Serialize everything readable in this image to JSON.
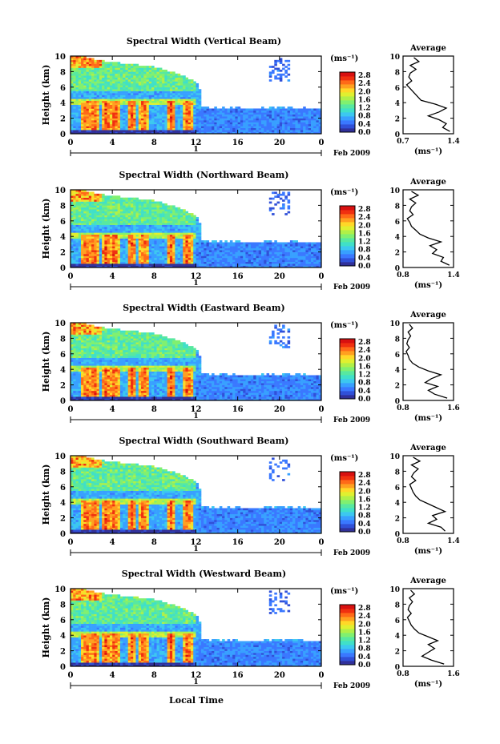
{
  "figure": {
    "xlabel": "Local Time",
    "date_label": "Feb 2009",
    "day_label": "1"
  },
  "colorbar": {
    "unit": "(ms⁻¹)",
    "ticks": [
      "2.8",
      "2.4",
      "2.0",
      "1.6",
      "1.2",
      "0.8",
      "0.4",
      "0.0"
    ],
    "colors": [
      "#30309a",
      "#3050d8",
      "#3a78ff",
      "#38a0ff",
      "#3cc8f0",
      "#40e0c8",
      "#58e8a0",
      "#80f070",
      "#b0f048",
      "#e0f030",
      "#ffd828",
      "#ffa020",
      "#ff6a18",
      "#f03010",
      "#d81010"
    ]
  },
  "chart_data": [
    {
      "type": "heatmap",
      "title": "Spectral Width (Vertical Beam)",
      "ylabel": "Height (km)",
      "xlim": [
        0,
        24
      ],
      "ylim": [
        0,
        10
      ],
      "x_ticks": [
        "0",
        "4",
        "8",
        "12",
        "16",
        "20",
        "0"
      ],
      "y_ticks": [
        "0",
        "2",
        "4",
        "6",
        "8",
        "10"
      ],
      "profile": {
        "title": "Average",
        "xlabel": "(ms⁻¹)",
        "xlim": [
          0.7,
          1.4
        ],
        "x_ticks": [
          "0.7",
          "1.4"
        ],
        "heights": [
          0.3,
          0.8,
          1.3,
          1.8,
          2.3,
          2.8,
          3.3,
          3.8,
          4.3,
          4.8,
          5.3,
          5.8,
          6.3,
          6.8,
          7.3,
          7.8,
          8.3,
          8.8,
          9.3,
          9.8
        ],
        "values": [
          1.35,
          1.25,
          1.3,
          1.2,
          1.05,
          1.2,
          1.3,
          1.15,
          0.95,
          0.9,
          0.85,
          0.8,
          0.75,
          0.82,
          0.78,
          0.8,
          0.88,
          0.8,
          0.92,
          0.85
        ]
      }
    },
    {
      "type": "heatmap",
      "title": "Spectral Width (Northward Beam)",
      "ylabel": "Height (km)",
      "xlim": [
        0,
        24
      ],
      "ylim": [
        0,
        10
      ],
      "x_ticks": [
        "0",
        "4",
        "8",
        "12",
        "16",
        "20",
        "0"
      ],
      "y_ticks": [
        "0",
        "2",
        "4",
        "6",
        "8",
        "10"
      ],
      "profile": {
        "title": "Average",
        "xlabel": "(ms⁻¹)",
        "xlim": [
          0.8,
          1.4
        ],
        "x_ticks": [
          "0.8",
          "1.4"
        ],
        "heights": [
          0.3,
          0.8,
          1.3,
          1.8,
          2.3,
          2.8,
          3.3,
          3.8,
          4.3,
          4.8,
          5.3,
          5.8,
          6.3,
          6.8,
          7.3,
          7.8,
          8.3,
          8.8,
          9.3,
          9.8
        ],
        "values": [
          1.35,
          1.25,
          1.28,
          1.15,
          1.2,
          1.12,
          1.25,
          1.1,
          1.0,
          0.95,
          0.9,
          0.88,
          0.85,
          0.92,
          0.88,
          0.9,
          0.95,
          0.88,
          0.98,
          0.9
        ]
      }
    },
    {
      "type": "heatmap",
      "title": "Spectral Width (Eastward Beam)",
      "ylabel": "Height (km)",
      "xlim": [
        0,
        24
      ],
      "ylim": [
        0,
        10
      ],
      "x_ticks": [
        "0",
        "4",
        "8",
        "12",
        "16",
        "20",
        "0"
      ],
      "y_ticks": [
        "0",
        "2",
        "4",
        "6",
        "8",
        "10"
      ],
      "profile": {
        "title": "Average",
        "xlabel": "(ms⁻¹)",
        "xlim": [
          0.8,
          1.6
        ],
        "x_ticks": [
          "0.8",
          "1.6"
        ],
        "heights": [
          0.3,
          0.8,
          1.3,
          1.8,
          2.3,
          2.8,
          3.3,
          3.8,
          4.3,
          4.8,
          5.3,
          5.8,
          6.3,
          6.8,
          7.3,
          7.8,
          8.3,
          8.8,
          9.3,
          9.8
        ],
        "values": [
          1.5,
          1.3,
          1.2,
          1.35,
          1.15,
          1.25,
          1.4,
          1.2,
          1.05,
          0.95,
          0.9,
          0.88,
          0.85,
          0.9,
          0.86,
          0.88,
          0.92,
          0.88,
          0.95,
          0.9
        ]
      }
    },
    {
      "type": "heatmap",
      "title": "Spectral Width (Southward Beam)",
      "ylabel": "Height (km)",
      "xlim": [
        0,
        24
      ],
      "ylim": [
        0,
        10
      ],
      "x_ticks": [
        "0",
        "4",
        "8",
        "12",
        "16",
        "20",
        "0"
      ],
      "y_ticks": [
        "0",
        "2",
        "4",
        "6",
        "8",
        "10"
      ],
      "profile": {
        "title": "Average",
        "xlabel": "(ms⁻¹)",
        "xlim": [
          0.8,
          1.4
        ],
        "x_ticks": [
          "0.8",
          "1.4"
        ],
        "heights": [
          0.3,
          0.8,
          1.3,
          1.8,
          2.3,
          2.8,
          3.3,
          3.8,
          4.3,
          4.8,
          5.3,
          5.8,
          6.3,
          6.8,
          7.3,
          7.8,
          8.3,
          8.8,
          9.3,
          9.8
        ],
        "values": [
          1.3,
          1.25,
          1.1,
          1.2,
          1.15,
          1.3,
          1.2,
          1.1,
          1.0,
          0.95,
          0.92,
          0.9,
          0.88,
          0.95,
          0.9,
          0.93,
          0.98,
          0.9,
          1.0,
          0.92
        ]
      }
    },
    {
      "type": "heatmap",
      "title": "Spectral Width (Westward Beam)",
      "ylabel": "Height (km)",
      "xlim": [
        0,
        24
      ],
      "ylim": [
        0,
        10
      ],
      "x_ticks": [
        "0",
        "4",
        "8",
        "12",
        "16",
        "20",
        "0"
      ],
      "y_ticks": [
        "0",
        "2",
        "4",
        "6",
        "8",
        "10"
      ],
      "profile": {
        "title": "Average",
        "xlabel": "(ms⁻¹)",
        "xlim": [
          0.8,
          1.6
        ],
        "x_ticks": [
          "0.8",
          "1.6"
        ],
        "heights": [
          0.3,
          0.8,
          1.3,
          1.8,
          2.3,
          2.8,
          3.3,
          3.8,
          4.3,
          4.8,
          5.3,
          5.8,
          6.3,
          6.8,
          7.3,
          7.8,
          8.3,
          8.8,
          9.3,
          9.8
        ],
        "values": [
          1.45,
          1.25,
          1.1,
          1.2,
          1.3,
          1.2,
          1.35,
          1.2,
          1.05,
          0.98,
          0.93,
          0.9,
          0.87,
          0.93,
          0.88,
          0.9,
          0.95,
          0.9,
          0.98,
          0.92
        ]
      }
    }
  ]
}
